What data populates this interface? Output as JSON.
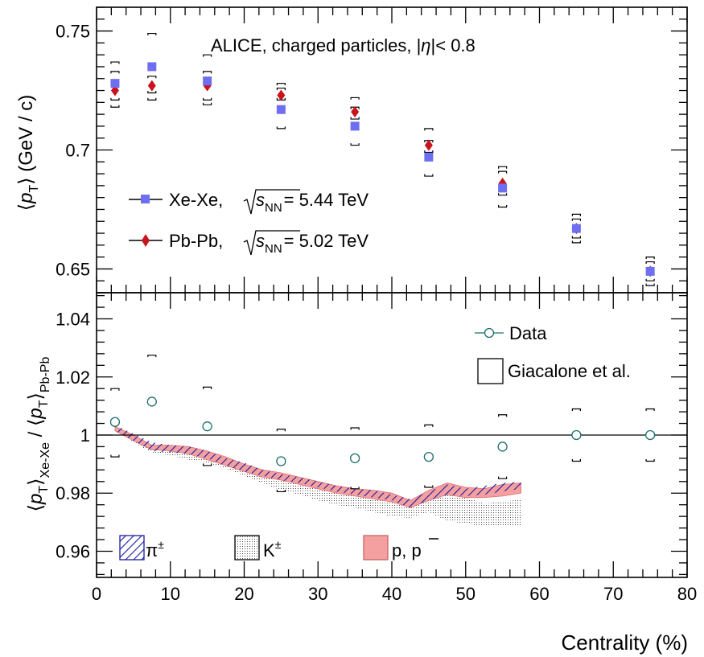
{
  "chart_data": [
    {
      "type": "scatter",
      "panel": "top",
      "ylabel": "⟨p_T⟩ (GeV / c)",
      "ylabel_parts": {
        "pre": "⟨",
        "p": "p",
        "sub": "T",
        "post": "⟩ (GeV / c)"
      },
      "ylim": [
        0.64,
        0.76
      ],
      "xlim": [
        0,
        80
      ],
      "yticks_major": [
        0.65,
        0.7,
        0.75
      ],
      "ytick_labels": [
        "0.65",
        "0.7",
        "0.75"
      ],
      "annotation": "ALICE, charged particles, |η| < 0.8",
      "annotation_parts": {
        "pre": "ALICE, charged particles, |",
        "eta": "η",
        "post": "|< 0.8"
      },
      "legend_position": "left",
      "series": [
        {
          "name": "Xe-Xe, √s_NN = 5.44 TeV",
          "legend_parts": {
            "pre": "Xe-Xe,",
            "s": "s",
            "sub": "NN",
            "post": "= 5.44 TeV"
          },
          "marker": "square",
          "color": "#6e6ef0",
          "x": [
            2.5,
            7.5,
            15,
            25,
            35,
            45,
            55,
            65,
            75
          ],
          "y": [
            0.728,
            0.735,
            0.729,
            0.717,
            0.71,
            0.697,
            0.684,
            0.667,
            0.649
          ],
          "sys_low": [
            0.718,
            0.721,
            0.719,
            0.709,
            0.702,
            0.689,
            0.676,
            0.661,
            0.643
          ],
          "sys_high": [
            0.737,
            0.749,
            0.74,
            0.728,
            0.722,
            0.709,
            0.693,
            0.673,
            0.655
          ]
        },
        {
          "name": "Pb-Pb, √s_NN = 5.02 TeV",
          "legend_parts": {
            "pre": "Pb-Pb,",
            "s": "s",
            "sub": "NN",
            "post": "= 5.02 TeV"
          },
          "marker": "diamond",
          "color": "#c8141e",
          "x": [
            2.5,
            7.5,
            15,
            25,
            35,
            45,
            55,
            65,
            75
          ],
          "y": [
            0.725,
            0.727,
            0.727,
            0.723,
            0.716,
            0.702,
            0.686,
            0.667,
            0.649
          ],
          "sys_low": [
            0.721,
            0.724,
            0.721,
            0.721,
            0.713,
            0.699,
            0.681,
            0.663,
            0.645
          ],
          "sys_high": [
            0.733,
            0.731,
            0.733,
            0.726,
            0.718,
            0.704,
            0.691,
            0.671,
            0.653
          ]
        }
      ]
    },
    {
      "type": "scatter",
      "panel": "bottom",
      "ylabel": "⟨p_T⟩_Xe-Xe / ⟨p_T⟩_Pb-Pb",
      "ylabel_parts": {
        "a": "⟨",
        "p1": "p",
        "t1": "T",
        "b": "⟩",
        "sub1": "Xe-Xe",
        "slash": " / ⟨",
        "p2": "p",
        "t2": "T",
        "c": "⟩",
        "sub2": "Pb-Pb"
      },
      "xlabel": "Centrality (%)",
      "ylim": [
        0.951,
        1.049
      ],
      "xlim": [
        0,
        80
      ],
      "yticks_major": [
        0.96,
        0.98,
        1.0,
        1.02,
        1.04
      ],
      "ytick_labels": [
        "0.96",
        "0.98",
        "1",
        "1.02",
        "1.04"
      ],
      "xticks_major": [
        0,
        10,
        20,
        30,
        40,
        50,
        60,
        70,
        80
      ],
      "xtick_labels": [
        "0",
        "10",
        "20",
        "30",
        "40",
        "50",
        "60",
        "70",
        "80"
      ],
      "reference_line": 1.0,
      "legend_entries": {
        "data": "Data",
        "model": "Giacalone et al."
      },
      "series": [
        {
          "name": "Data",
          "marker": "open-circle",
          "color": "#1e6e6e",
          "x": [
            2.5,
            7.5,
            15,
            25,
            35,
            45,
            55,
            65,
            75
          ],
          "y": [
            1.0045,
            1.0115,
            1.003,
            0.991,
            0.992,
            0.9925,
            0.996,
            1.0,
            1.0
          ],
          "sys_low": [
            0.9925,
            null,
            0.9895,
            0.9805,
            0.9815,
            0.982,
            0.985,
            0.991,
            0.991
          ],
          "sys_high": [
            1.016,
            1.0275,
            1.0165,
            1.002,
            1.0025,
            1.0035,
            1.007,
            1.009,
            1.009
          ]
        }
      ],
      "model_bands": [
        {
          "name": "π±",
          "label_parts": {
            "base": "π",
            "sup": "±"
          },
          "style": "blue-hatch",
          "color": "#1a1aa0",
          "x": [
            2.5,
            5,
            7.5,
            10,
            12.5,
            15,
            17.5,
            20,
            22.5,
            25,
            27.5,
            30,
            32.5,
            35,
            37.5,
            40,
            42.5,
            45,
            47.5,
            50,
            52.5,
            55,
            57.5
          ],
          "lower": [
            1.0015,
            0.998,
            0.9945,
            0.994,
            0.9935,
            0.992,
            0.9895,
            0.9875,
            0.986,
            0.9845,
            0.9835,
            0.982,
            0.9805,
            0.9795,
            0.9785,
            0.9775,
            0.975,
            0.9775,
            0.9795,
            0.979,
            0.9795,
            0.9805,
            0.9815
          ],
          "upper": [
            1.0035,
            1.0005,
            0.9975,
            0.9965,
            0.996,
            0.9945,
            0.992,
            0.9905,
            0.988,
            0.9865,
            0.9855,
            0.984,
            0.9825,
            0.9815,
            0.981,
            0.9795,
            0.978,
            0.9805,
            0.983,
            0.9815,
            0.9825,
            0.9835,
            0.984
          ]
        },
        {
          "name": "K±",
          "label_parts": {
            "base": "K",
            "sup": "±"
          },
          "style": "dots",
          "color": "#000000",
          "x": [
            2.5,
            5,
            7.5,
            10,
            12.5,
            15,
            17.5,
            20,
            22.5,
            25,
            27.5,
            30,
            32.5,
            35,
            37.5,
            40,
            42.5,
            45,
            47.5,
            50,
            52.5,
            55,
            57.5
          ],
          "lower": [
            1.002,
            0.9975,
            0.994,
            0.993,
            0.9915,
            0.9905,
            0.9885,
            0.986,
            0.9835,
            0.981,
            0.9795,
            0.9775,
            0.976,
            0.975,
            0.9735,
            0.972,
            0.9715,
            0.9735,
            0.9705,
            0.9695,
            0.9685,
            0.9685,
            0.969
          ],
          "upper": [
            1.0035,
            0.999,
            0.997,
            0.9965,
            0.9955,
            0.994,
            0.9915,
            0.989,
            0.987,
            0.9855,
            0.9845,
            0.983,
            0.9815,
            0.9805,
            0.979,
            0.978,
            0.9755,
            0.978,
            0.9805,
            0.9785,
            0.9765,
            0.977,
            0.978
          ]
        },
        {
          "name": "p, p̄",
          "label_parts": {
            "a": "p, ",
            "b": "p"
          },
          "style": "fill",
          "color": "#f5a0a0",
          "x": [
            2.5,
            5,
            7.5,
            10,
            12.5,
            15,
            17.5,
            20,
            22.5,
            25,
            27.5,
            30,
            32.5,
            35,
            37.5,
            40,
            42.5,
            45,
            47.5,
            50,
            52.5,
            55,
            57.5
          ],
          "lower": [
            1.0015,
            0.998,
            0.995,
            0.9945,
            0.9935,
            0.9915,
            0.9895,
            0.9875,
            0.9855,
            0.9845,
            0.983,
            0.9815,
            0.98,
            0.979,
            0.978,
            0.977,
            0.975,
            0.9775,
            0.9795,
            0.9785,
            0.9785,
            0.979,
            0.98
          ],
          "upper": [
            1.003,
            1.0,
            0.9965,
            0.9965,
            0.996,
            0.9945,
            0.9925,
            0.99,
            0.988,
            0.987,
            0.9855,
            0.984,
            0.9825,
            0.9815,
            0.981,
            0.98,
            0.9775,
            0.981,
            0.9835,
            0.982,
            0.9815,
            0.983,
            0.9835
          ]
        }
      ]
    }
  ]
}
